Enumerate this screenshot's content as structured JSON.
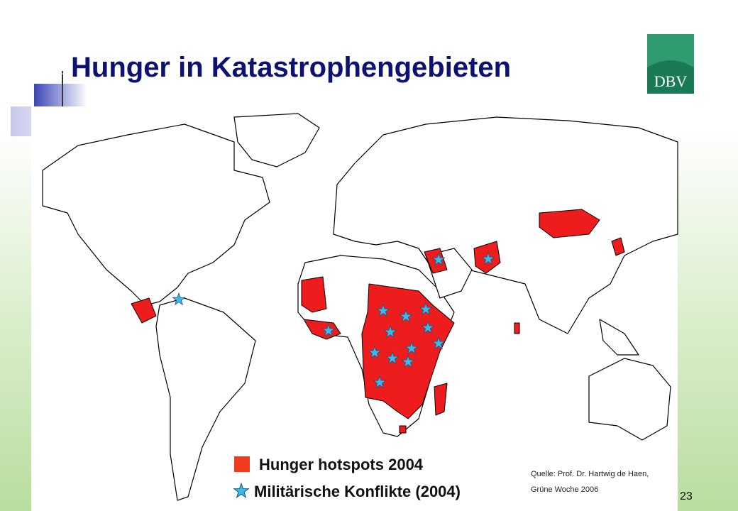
{
  "header": {
    "title": "Hunger in Katastrophengebieten",
    "logo": "DBV"
  },
  "legend": {
    "items": [
      "Hunger hotspots 2004",
      "Militärische Konflikte (2004)"
    ]
  },
  "source": {
    "lines": [
      "Quelle: Prof. Dr. Hartwig de Haen,",
      "Grüne Woche 2006"
    ]
  },
  "page_number": "23"
}
